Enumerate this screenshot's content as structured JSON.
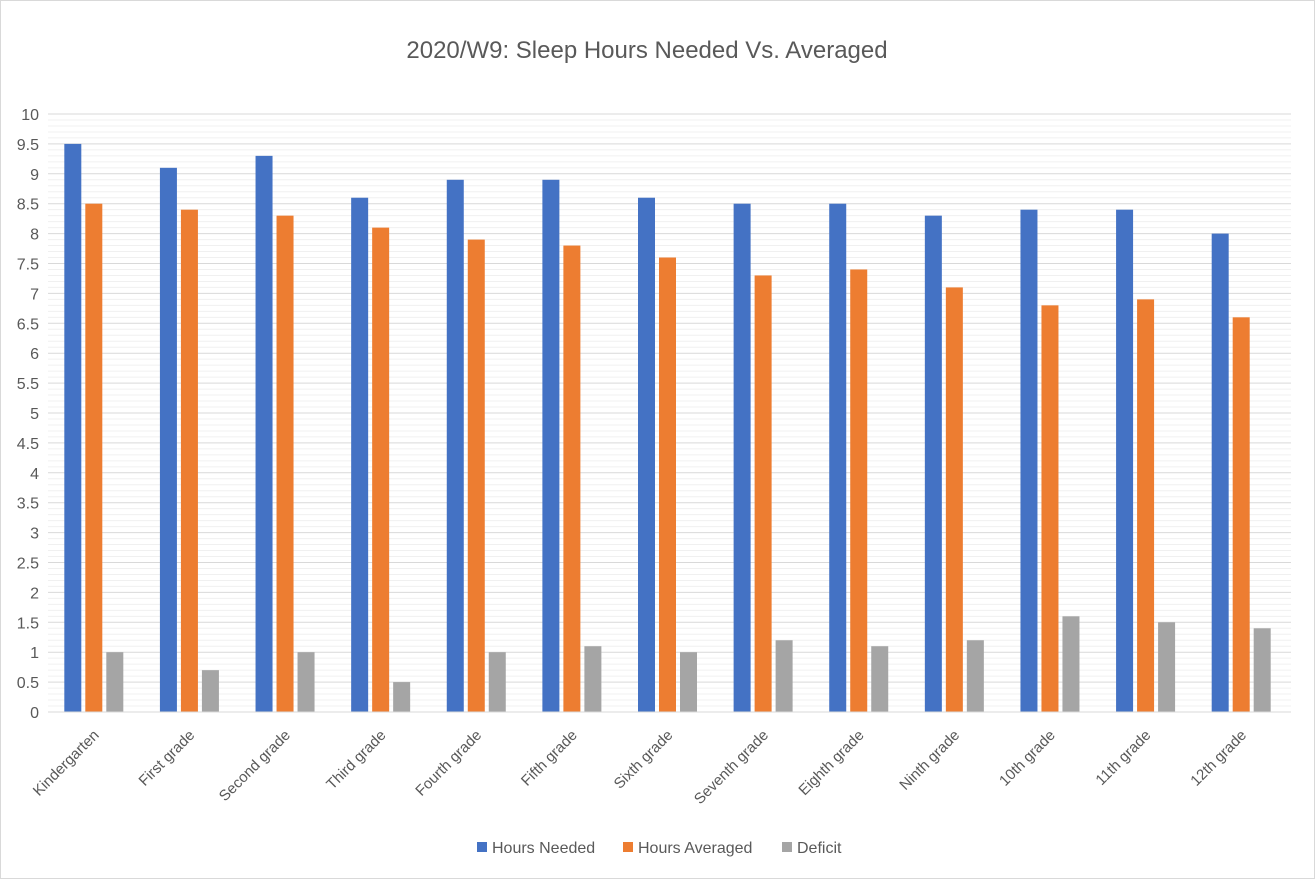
{
  "chart_data": {
    "type": "bar",
    "title": "2020/W9: Sleep Hours Needed Vs. Averaged",
    "xlabel": "",
    "ylabel": "",
    "ylim": [
      0,
      10
    ],
    "y_ticks": [
      "0",
      "0.5",
      "1",
      "1.5",
      "2",
      "2.5",
      "3",
      "3.5",
      "4",
      "4.5",
      "5",
      "5.5",
      "6",
      "6.5",
      "7",
      "7.5",
      "8",
      "8.5",
      "9",
      "9.5",
      "10"
    ],
    "grid": true,
    "legend_position": "bottom",
    "categories": [
      "Kindergarten",
      "First grade",
      "Second grade",
      "Third grade",
      "Fourth grade",
      "Fifth grade",
      "Sixth grade",
      "Seventh grade",
      "Eighth grade",
      "Ninth grade",
      "10th grade",
      "11th grade",
      "12th grade"
    ],
    "series": [
      {
        "name": "Hours Needed",
        "color": "#4472c4",
        "values": [
          9.5,
          9.1,
          9.3,
          8.6,
          8.9,
          8.9,
          8.6,
          8.5,
          8.5,
          8.3,
          8.4,
          8.4,
          8.0
        ]
      },
      {
        "name": "Hours Averaged",
        "color": "#ed7d31",
        "values": [
          8.5,
          8.4,
          8.3,
          8.1,
          7.9,
          7.8,
          7.6,
          7.3,
          7.4,
          7.1,
          6.8,
          6.9,
          6.6
        ]
      },
      {
        "name": "Deficit",
        "color": "#a5a5a5",
        "values": [
          1.0,
          0.7,
          1.0,
          0.5,
          1.0,
          1.1,
          1.0,
          1.2,
          1.1,
          1.2,
          1.6,
          1.5,
          1.4
        ]
      }
    ]
  }
}
